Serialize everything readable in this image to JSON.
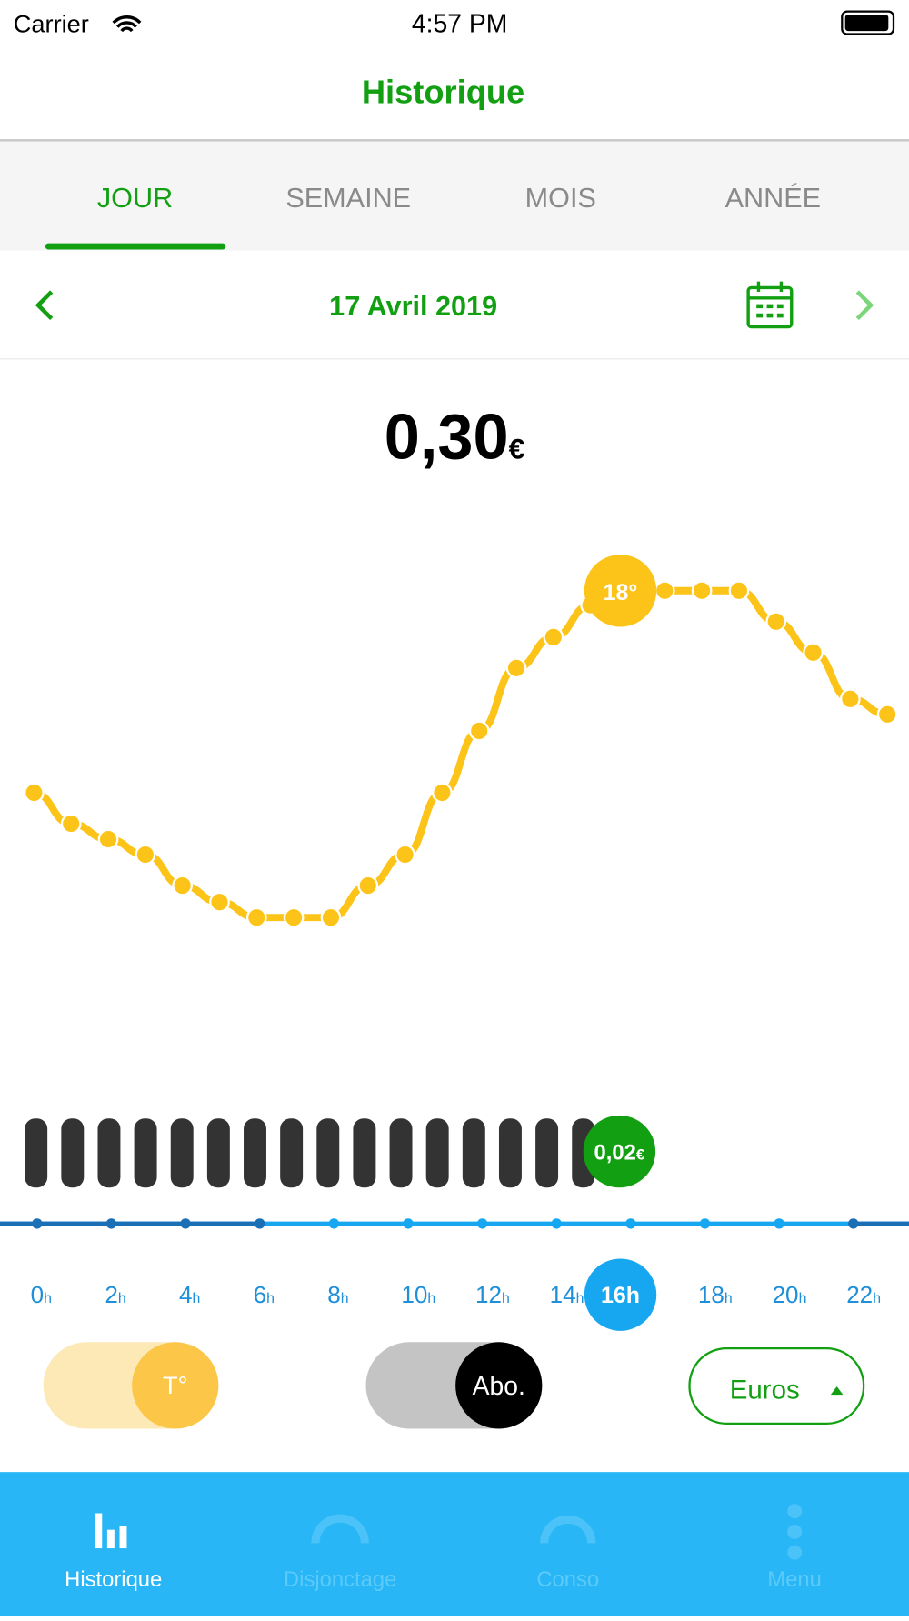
{
  "status_bar": {
    "carrier": "Carrier",
    "time": "4:57 PM"
  },
  "header": {
    "title": "Historique"
  },
  "tabs": [
    "JOUR",
    "SEMAINE",
    "MOIS",
    "ANNÉE"
  ],
  "date": "17 Avril 2019",
  "total": {
    "amount": "0,30",
    "unit": "€"
  },
  "temperature_marker": "18°",
  "cost_marker": {
    "amount": "0,02",
    "unit": "€"
  },
  "hours": [
    "0",
    "2",
    "4",
    "6",
    "8",
    "10",
    "12",
    "14",
    "16",
    "18",
    "20",
    "22"
  ],
  "hour_unit": "h",
  "toggles": {
    "temperature": "T°",
    "subscription": "Abo."
  },
  "unit_selector": "Euros",
  "tab_bar": [
    "Historique",
    "Disjonctage",
    "Conso",
    "Menu"
  ]
}
